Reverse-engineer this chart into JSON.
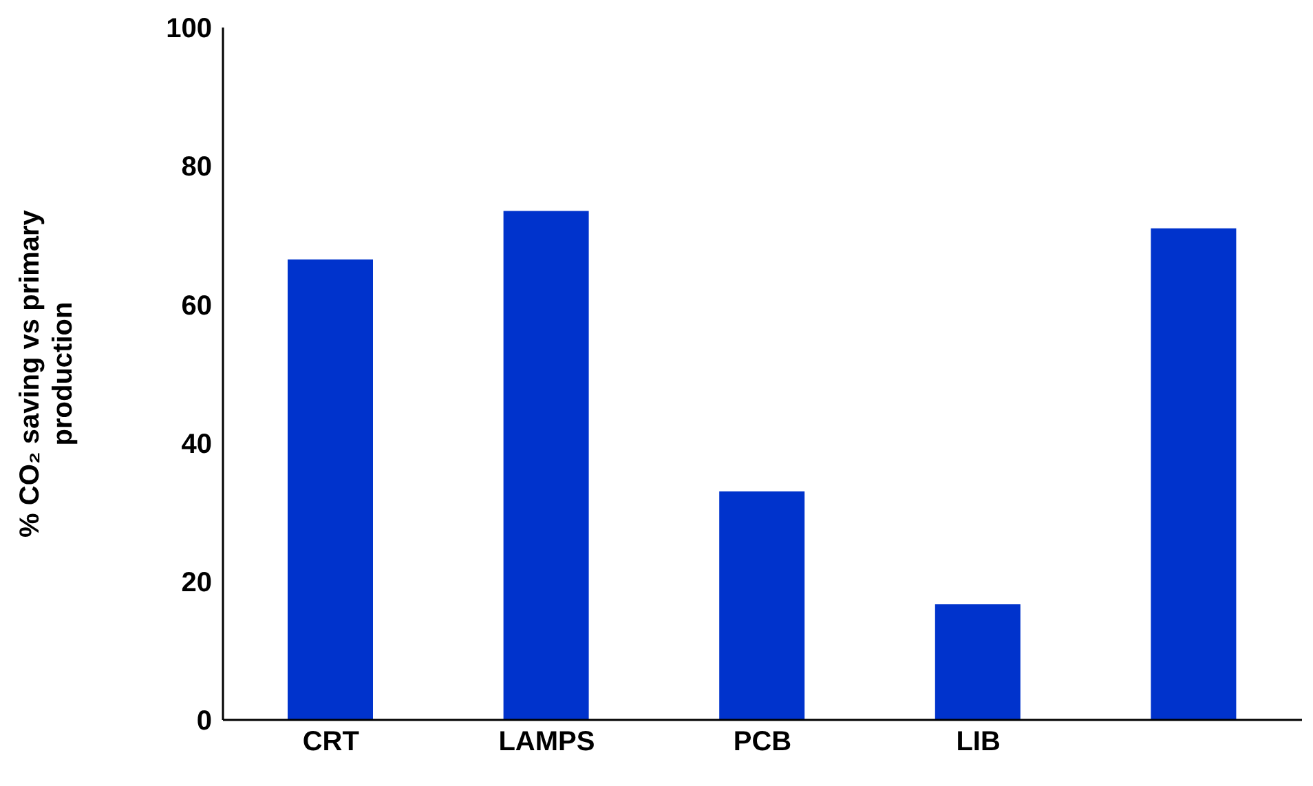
{
  "chart_data": {
    "type": "bar",
    "ylabel": "% CO₂ saving vs primary production",
    "categories": [
      "CRT",
      "LAMPS",
      "PCB",
      "LIB",
      null
    ],
    "values": [
      66.5,
      73.5,
      33,
      16.7,
      71
    ],
    "color": "#0033cc",
    "ylim": [
      0,
      100
    ],
    "yticks": [
      0,
      20,
      40,
      60,
      80,
      100
    ],
    "grid": false,
    "legend": false
  }
}
